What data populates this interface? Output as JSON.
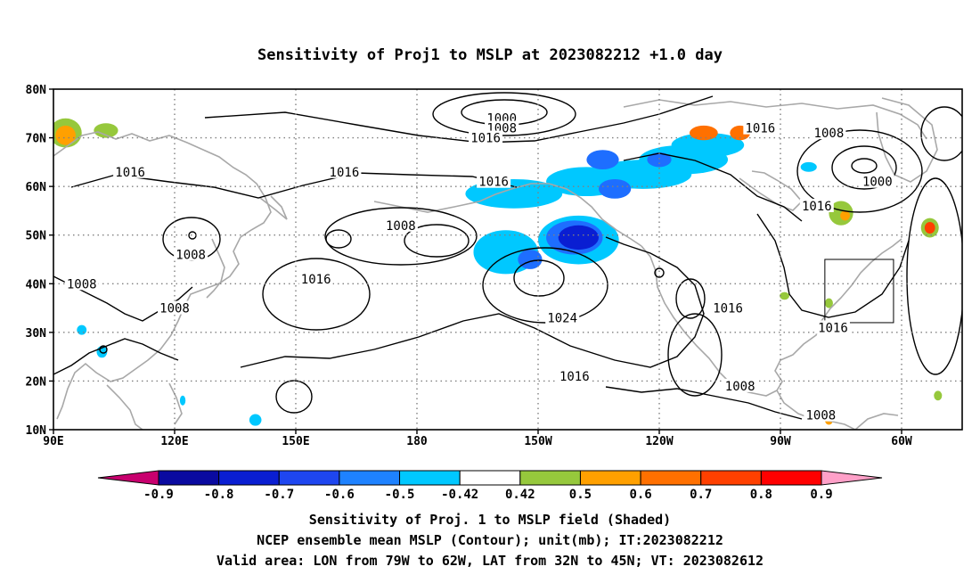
{
  "title": "Sensitivity of Proj1 to MSLP at 2023082212 +1.0 day",
  "map": {
    "lon_labels": [
      "90E",
      "120E",
      "150E",
      "180",
      "150W",
      "120W",
      "90W",
      "60W"
    ],
    "lat_labels": [
      "80N",
      "70N",
      "60N",
      "50N",
      "40N",
      "30N",
      "20N",
      "10N"
    ],
    "extent": {
      "lon_min": 90,
      "lon_max": 315,
      "lat_min": 10,
      "lat_max": 80
    },
    "gridlines": "dotted",
    "coastline_color": "#a8a8a8",
    "contour_color": "#000000",
    "contour_labels": [
      {
        "text": "1000",
        "lon": 201,
        "lat": 74
      },
      {
        "text": "1008",
        "lon": 201,
        "lat": 72
      },
      {
        "text": "1016",
        "lon": 197,
        "lat": 70
      },
      {
        "text": "1016",
        "lon": 109,
        "lat": 63
      },
      {
        "text": "1016",
        "lon": 162,
        "lat": 63
      },
      {
        "text": "1016",
        "lon": 199,
        "lat": 61
      },
      {
        "text": "1016",
        "lon": 265,
        "lat": 72
      },
      {
        "text": "1008",
        "lon": 282,
        "lat": 71
      },
      {
        "text": "1000",
        "lon": 294,
        "lat": 61
      },
      {
        "text": "1016",
        "lon": 279,
        "lat": 56
      },
      {
        "text": "1008",
        "lon": 176,
        "lat": 52
      },
      {
        "text": "1008",
        "lon": 124,
        "lat": 46
      },
      {
        "text": "1016",
        "lon": 155,
        "lat": 41
      },
      {
        "text": "1008",
        "lon": 97,
        "lat": 40
      },
      {
        "text": "1008",
        "lon": 120,
        "lat": 35
      },
      {
        "text": "1024",
        "lon": 216,
        "lat": 33
      },
      {
        "text": "1016",
        "lon": 257,
        "lat": 35
      },
      {
        "text": "1016",
        "lon": 283,
        "lat": 31
      },
      {
        "text": "1016",
        "lon": 219,
        "lat": 21
      },
      {
        "text": "1008",
        "lon": 260,
        "lat": 19
      },
      {
        "text": "1008",
        "lon": 280,
        "lat": 13
      }
    ],
    "valid_area_box": {
      "lon_min": 281,
      "lon_max": 298,
      "lat_min": 32,
      "lat_max": 45
    },
    "shaded_regions": [
      {
        "lon": 93,
        "lat": 71,
        "rx": 4,
        "ry": 3,
        "color": "#96c83c"
      },
      {
        "lon": 93,
        "lat": 70.5,
        "rx": 2.5,
        "ry": 2,
        "color": "#ffa000"
      },
      {
        "lon": 103,
        "lat": 71.5,
        "rx": 3,
        "ry": 1.5,
        "color": "#96c83c"
      },
      {
        "lon": 204,
        "lat": 58.5,
        "rx": 12,
        "ry": 3,
        "color": "#00c8ff"
      },
      {
        "lon": 222,
        "lat": 61,
        "rx": 10,
        "ry": 3,
        "color": "#00c8ff"
      },
      {
        "lon": 236,
        "lat": 62.5,
        "rx": 12,
        "ry": 3,
        "color": "#00c8ff"
      },
      {
        "lon": 246,
        "lat": 65.5,
        "rx": 11,
        "ry": 3,
        "color": "#00c8ff"
      },
      {
        "lon": 252,
        "lat": 68.5,
        "rx": 9,
        "ry": 2.5,
        "color": "#00c8ff"
      },
      {
        "lon": 251,
        "lat": 71,
        "rx": 3.5,
        "ry": 1.5,
        "color": "#ff7000"
      },
      {
        "lon": 260,
        "lat": 71,
        "rx": 2.5,
        "ry": 1.5,
        "color": "#ff7000"
      },
      {
        "lon": 226,
        "lat": 65.5,
        "rx": 4,
        "ry": 2,
        "color": "#1e6eff"
      },
      {
        "lon": 240,
        "lat": 65.5,
        "rx": 3,
        "ry": 1.5,
        "color": "#1e6eff"
      },
      {
        "lon": 229,
        "lat": 59.5,
        "rx": 4,
        "ry": 2,
        "color": "#1e6eff"
      },
      {
        "lon": 202,
        "lat": 46.5,
        "rx": 8,
        "ry": 4.5,
        "color": "#00c8ff"
      },
      {
        "lon": 220,
        "lat": 49,
        "rx": 10,
        "ry": 5,
        "color": "#00c8ff"
      },
      {
        "lon": 219,
        "lat": 49.5,
        "rx": 7,
        "ry": 3.5,
        "color": "#1e6eff"
      },
      {
        "lon": 220,
        "lat": 49.5,
        "rx": 5,
        "ry": 2.5,
        "color": "#0a1ed2"
      },
      {
        "lon": 208,
        "lat": 45,
        "rx": 3,
        "ry": 2,
        "color": "#1e6eff"
      },
      {
        "lon": 285,
        "lat": 54.5,
        "rx": 3,
        "ry": 2.5,
        "color": "#96c83c"
      },
      {
        "lon": 286,
        "lat": 54,
        "rx": 1.2,
        "ry": 1,
        "color": "#ffa000"
      },
      {
        "lon": 307,
        "lat": 51.5,
        "rx": 2.2,
        "ry": 2,
        "color": "#96c83c"
      },
      {
        "lon": 307,
        "lat": 51.5,
        "rx": 1.3,
        "ry": 1.2,
        "color": "#ff4000"
      },
      {
        "lon": 97,
        "lat": 30.5,
        "rx": 1.2,
        "ry": 1,
        "color": "#00c8ff"
      },
      {
        "lon": 102,
        "lat": 26,
        "rx": 1.3,
        "ry": 1.2,
        "color": "#00c8ff"
      },
      {
        "lon": 140,
        "lat": 12,
        "rx": 1.5,
        "ry": 1.2,
        "color": "#00c8ff"
      },
      {
        "lon": 122,
        "lat": 16,
        "rx": 0.7,
        "ry": 1,
        "color": "#00c8ff"
      },
      {
        "lon": 271,
        "lat": 37.5,
        "rx": 1.2,
        "ry": 0.8,
        "color": "#96c83c"
      },
      {
        "lon": 282,
        "lat": 36,
        "rx": 1,
        "ry": 1,
        "color": "#96c83c"
      },
      {
        "lon": 282,
        "lat": 12,
        "rx": 1,
        "ry": 1,
        "color": "#ffa000"
      },
      {
        "lon": 309,
        "lat": 17,
        "rx": 1,
        "ry": 1,
        "color": "#96c83c"
      },
      {
        "lon": 277,
        "lat": 64,
        "rx": 2,
        "ry": 1,
        "color": "#00c8ff"
      }
    ]
  },
  "colorbar": {
    "labels": [
      "-0.9",
      "-0.8",
      "-0.7",
      "-0.6",
      "-0.5",
      "-0.42",
      "0.42",
      "0.5",
      "0.6",
      "0.7",
      "0.8",
      "0.9"
    ],
    "colors": [
      "#c8006e",
      "#0a0aa0",
      "#0a1ed2",
      "#1e46f0",
      "#1e82ff",
      "#00c8ff",
      "#ffffff",
      "#96c83c",
      "#ffa000",
      "#ff7000",
      "#ff4000",
      "#ff0000",
      "#ffa0c8"
    ]
  },
  "footer": {
    "line1": "Sensitivity of Proj. 1 to MSLP field (Shaded)",
    "line2": "NCEP ensemble mean MSLP (Contour); unit(mb); IT:2023082212",
    "line3": "Valid area: LON from 79W to 62W, LAT from 32N to 45N; VT: 2023082612"
  }
}
